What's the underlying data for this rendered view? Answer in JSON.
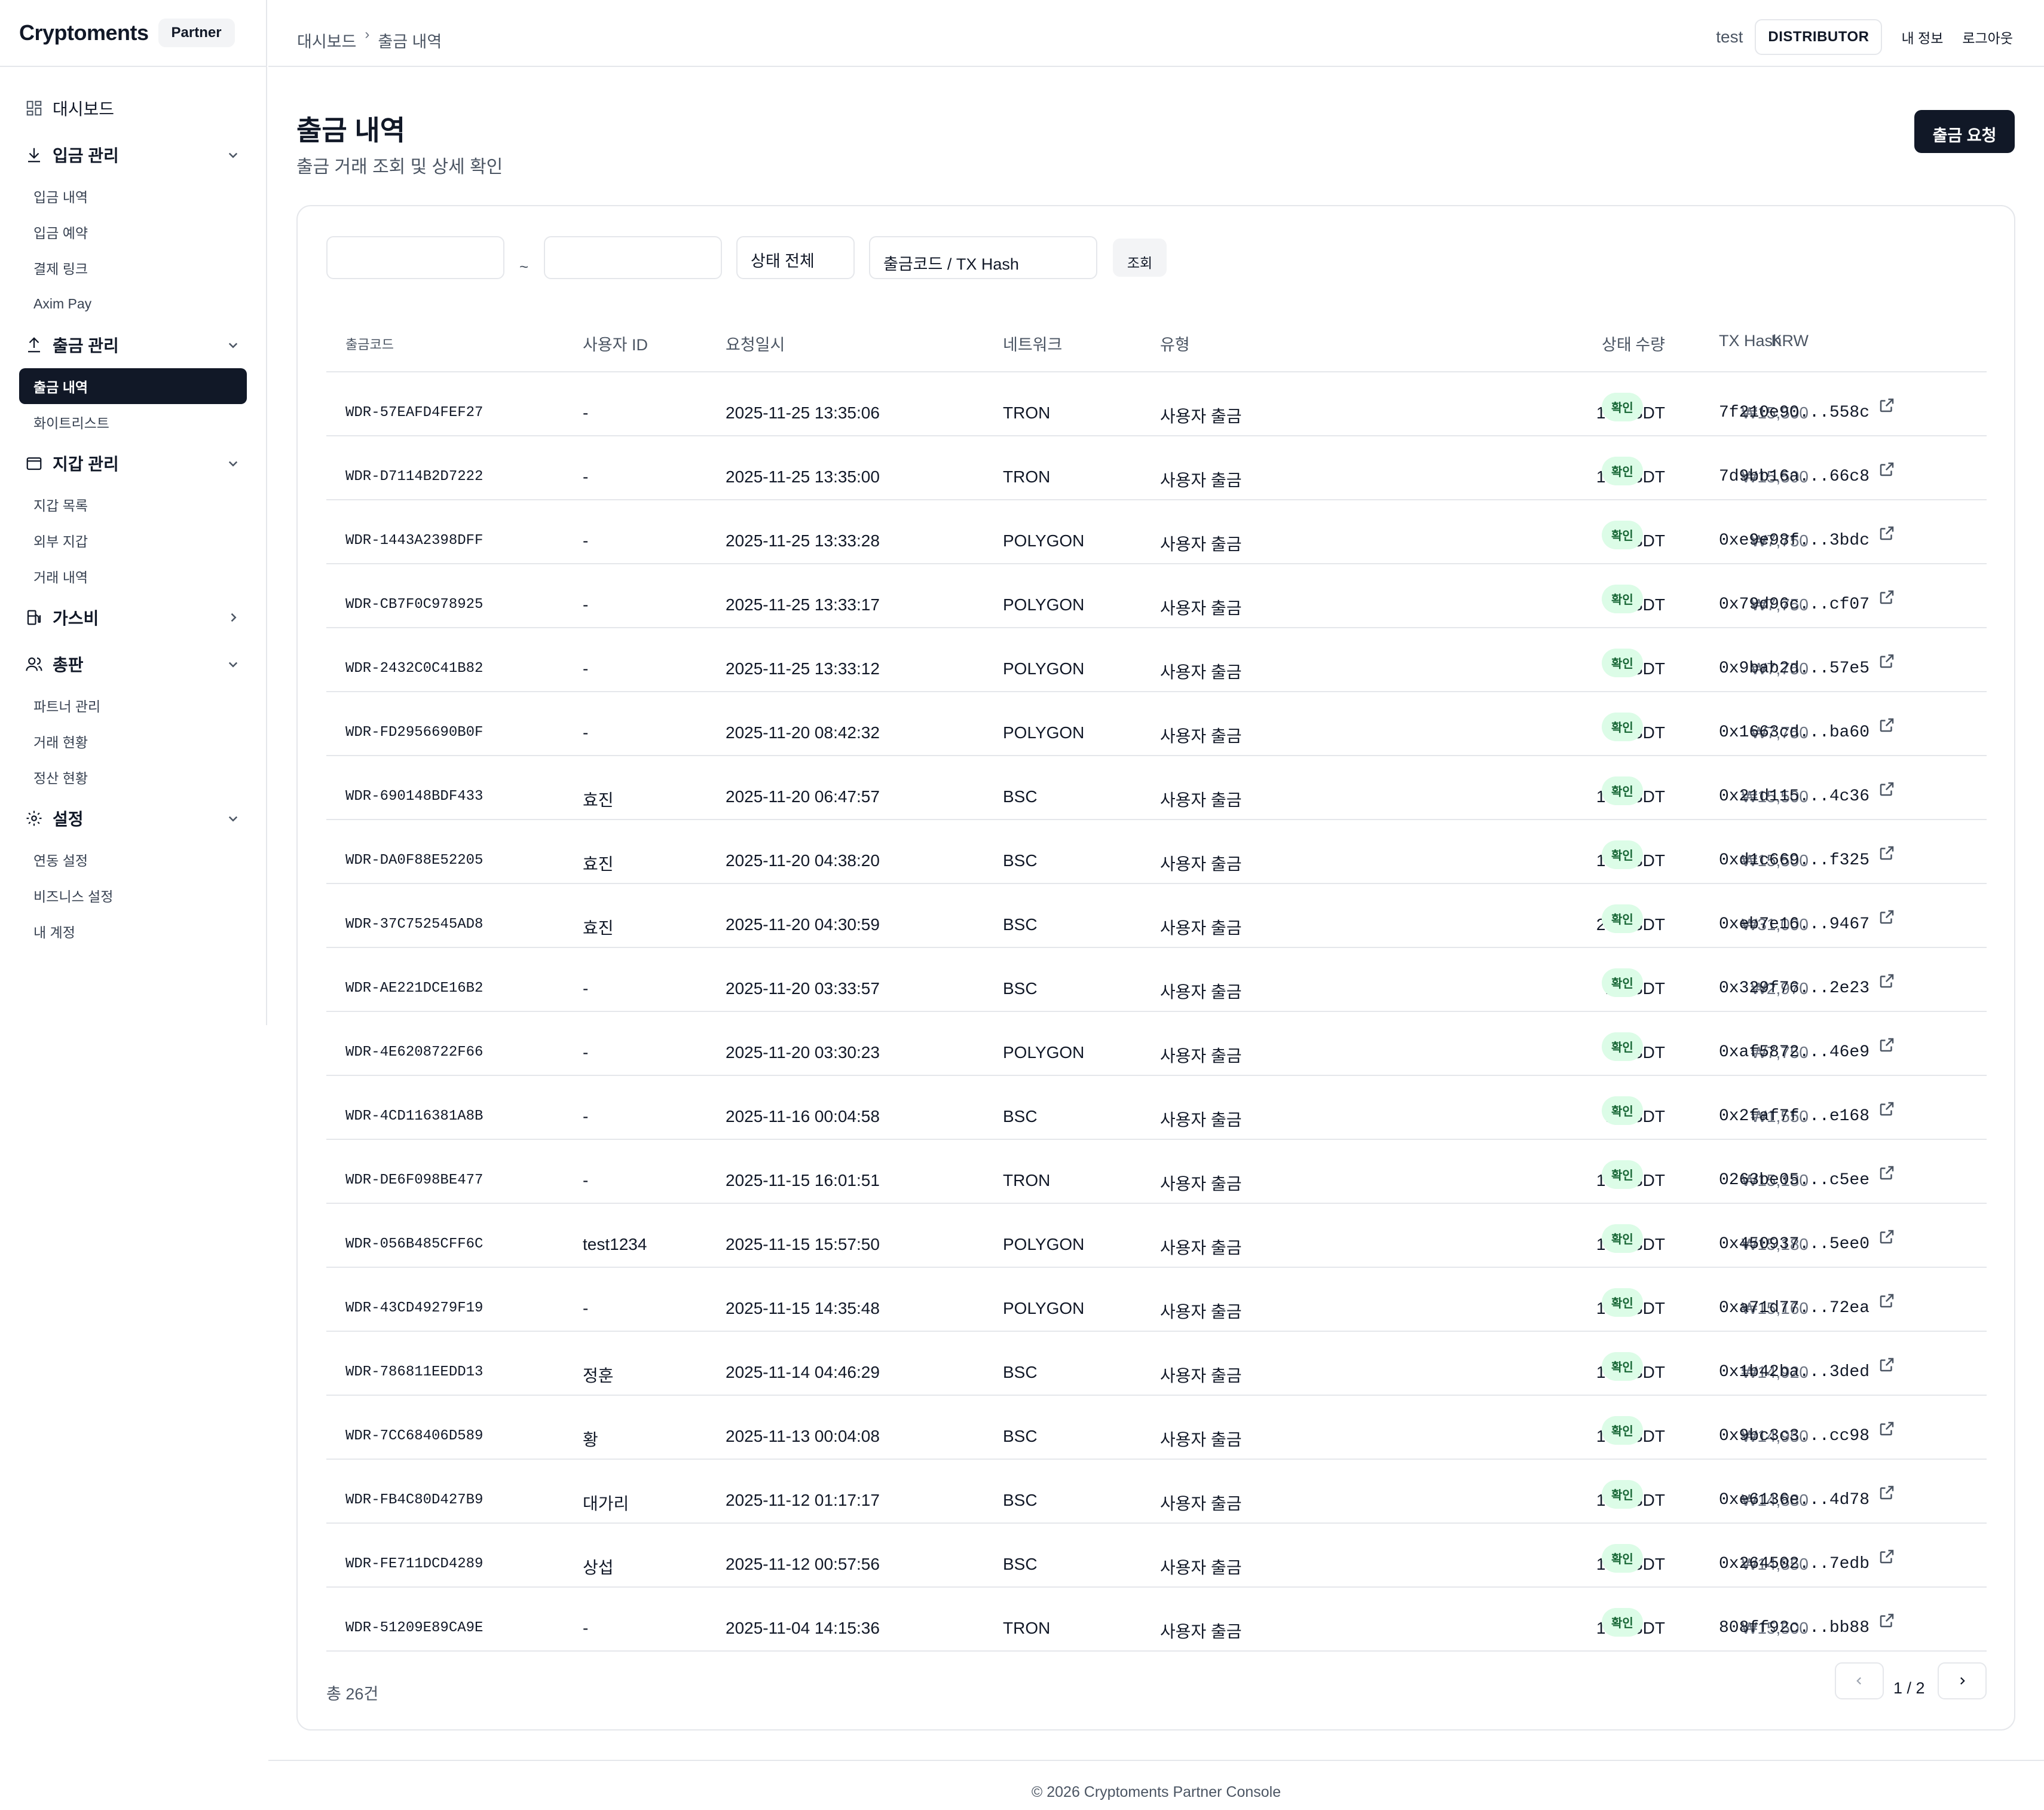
{
  "brand": {
    "name": "Cryptoments",
    "badge": "Partner"
  },
  "sidebar": {
    "dashboard": "대시보드",
    "deposit": {
      "label": "입금 관리",
      "items": [
        "입금 내역",
        "입금 예약",
        "결제 링크",
        "Axim Pay"
      ]
    },
    "withdraw": {
      "label": "출금 관리",
      "items": [
        "출금 내역",
        "화이트리스트"
      ]
    },
    "wallet": {
      "label": "지갑 관리",
      "items": [
        "지갑 목록",
        "외부 지갑",
        "거래 내역"
      ]
    },
    "gas": {
      "label": "가스비"
    },
    "distributor": {
      "label": "총판",
      "items": [
        "파트너 관리",
        "거래 현황",
        "정산 현황"
      ]
    },
    "settings": {
      "label": "설정",
      "items": [
        "연동 설정",
        "비즈니스 설정",
        "내 계정"
      ]
    }
  },
  "header": {
    "breadcrumb": [
      "대시보드",
      "출금 내역"
    ],
    "user": "test",
    "role": "DISTRIBUTOR",
    "my_info": "내 정보",
    "logout": "로그아웃"
  },
  "page": {
    "title": "출금 내역",
    "subtitle": "출금 거래 조회 및 상세 확인",
    "request_button": "출금 요청"
  },
  "filters": {
    "start_date": "",
    "end_date": "",
    "range_sep": "~",
    "status": "상태 전체",
    "search_placeholder": "출금코드 / TX Hash",
    "search_button": "조회"
  },
  "table": {
    "columns": [
      "출금코드",
      "사용자 ID",
      "요청일시",
      "네트워크",
      "유형",
      "수량",
      "KRW",
      "상태",
      "TX Hash"
    ],
    "rows": [
      {
        "code": "WDR-57EAFD4FEF27",
        "user": "-",
        "date": "2025-11-25 13:35:06",
        "network": "TRON",
        "type": "사용자 출금",
        "qty": "10",
        "unit": "USDT",
        "krw": "₩15,500",
        "status": "확인",
        "hash": "7f210e90...558c"
      },
      {
        "code": "WDR-D7114B2D7222",
        "user": "-",
        "date": "2025-11-25 13:35:00",
        "network": "TRON",
        "type": "사용자 출금",
        "qty": "10",
        "unit": "USDT",
        "krw": "₩15,500",
        "status": "확인",
        "hash": "7d9bb16a...66c8"
      },
      {
        "code": "WDR-1443A2398DFF",
        "user": "-",
        "date": "2025-11-25 13:33:28",
        "network": "POLYGON",
        "type": "사용자 출금",
        "qty": "5",
        "unit": "USDT",
        "krw": "₩7,750",
        "status": "확인",
        "hash": "0xe9e98f...3bdc"
      },
      {
        "code": "WDR-CB7F0C978925",
        "user": "-",
        "date": "2025-11-25 13:33:17",
        "network": "POLYGON",
        "type": "사용자 출금",
        "qty": "5",
        "unit": "USDT",
        "krw": "₩7,750",
        "status": "확인",
        "hash": "0x79d96c...cf07"
      },
      {
        "code": "WDR-2432C0C41B82",
        "user": "-",
        "date": "2025-11-25 13:33:12",
        "network": "POLYGON",
        "type": "사용자 출금",
        "qty": "5",
        "unit": "USDT",
        "krw": "₩7,750",
        "status": "확인",
        "hash": "0x9bab2d...57e5"
      },
      {
        "code": "WDR-FD2956690B0F",
        "user": "-",
        "date": "2025-11-20 08:42:32",
        "network": "POLYGON",
        "type": "사용자 출금",
        "qty": "5",
        "unit": "USDT",
        "krw": "₩7,750",
        "status": "확인",
        "hash": "0x1663cd...ba60"
      },
      {
        "code": "WDR-690148BDF433",
        "user": "효진",
        "date": "2025-11-20 06:47:57",
        "network": "BSC",
        "type": "사용자 출금",
        "qty": "10",
        "unit": "USDT",
        "krw": "₩15,500",
        "status": "확인",
        "hash": "0x21d115...4c36"
      },
      {
        "code": "WDR-DA0F88E52205",
        "user": "효진",
        "date": "2025-11-20 04:38:20",
        "network": "BSC",
        "type": "사용자 출금",
        "qty": "10",
        "unit": "USDT",
        "krw": "₩15,500",
        "status": "확인",
        "hash": "0xd1c669...f325"
      },
      {
        "code": "WDR-37C752545AD8",
        "user": "효진",
        "date": "2025-11-20 04:30:59",
        "network": "BSC",
        "type": "사용자 출금",
        "qty": "20",
        "unit": "USDT",
        "krw": "₩31,000",
        "status": "확인",
        "hash": "0xeb7e16...9467"
      },
      {
        "code": "WDR-AE221DCE16B2",
        "user": "-",
        "date": "2025-11-20 03:33:57",
        "network": "BSC",
        "type": "사용자 출금",
        "qty": "2",
        "unit": "USDT",
        "krw": "₩2,970",
        "status": "확인",
        "hash": "0x329f76...2e23"
      },
      {
        "code": "WDR-4E6208722F66",
        "user": "-",
        "date": "2025-11-20 03:30:23",
        "network": "POLYGON",
        "type": "사용자 출금",
        "qty": "5",
        "unit": "USDT",
        "krw": "₩7,750",
        "status": "확인",
        "hash": "0xaf5872...46e9"
      },
      {
        "code": "WDR-4CD116381A8B",
        "user": "-",
        "date": "2025-11-16 00:04:58",
        "network": "BSC",
        "type": "사용자 출금",
        "qty": "1",
        "unit": "USDT",
        "krw": "₩1,550",
        "status": "확인",
        "hash": "0x2faf7f...e168"
      },
      {
        "code": "WDR-DE6F098BE477",
        "user": "-",
        "date": "2025-11-15 16:01:51",
        "network": "TRON",
        "type": "사용자 출금",
        "qty": "10",
        "unit": "USDT",
        "krw": "₩15,180",
        "status": "확인",
        "hash": "0263be05...c5ee"
      },
      {
        "code": "WDR-056B485CFF6C",
        "user": "test1234",
        "date": "2025-11-15 15:57:50",
        "network": "POLYGON",
        "type": "사용자 출금",
        "qty": "10",
        "unit": "USDT",
        "krw": "₩15,180",
        "status": "확인",
        "hash": "0x450937...5ee0"
      },
      {
        "code": "WDR-43CD49279F19",
        "user": "-",
        "date": "2025-11-15 14:35:48",
        "network": "POLYGON",
        "type": "사용자 출금",
        "qty": "10",
        "unit": "USDT",
        "krw": "₩15,160",
        "status": "확인",
        "hash": "0xa71d77...72ea"
      },
      {
        "code": "WDR-786811EEDD13",
        "user": "정훈",
        "date": "2025-11-14 04:46:29",
        "network": "BSC",
        "type": "사용자 출금",
        "qty": "10",
        "unit": "USDT",
        "krw": "₩14,920",
        "status": "확인",
        "hash": "0x1b42ba...3ded"
      },
      {
        "code": "WDR-7CC68406D589",
        "user": "황",
        "date": "2025-11-13 00:04:08",
        "network": "BSC",
        "type": "사용자 출금",
        "qty": "10",
        "unit": "USDT",
        "krw": "₩14,950",
        "status": "확인",
        "hash": "0x9bc3c3...cc98"
      },
      {
        "code": "WDR-FB4C80D427B9",
        "user": "대가리",
        "date": "2025-11-12 01:17:17",
        "network": "BSC",
        "type": "사용자 출금",
        "qty": "10",
        "unit": "USDT",
        "krw": "₩14,880",
        "status": "확인",
        "hash": "0xe6136e...4d78"
      },
      {
        "code": "WDR-FE711DCD4289",
        "user": "상섭",
        "date": "2025-11-12 00:57:56",
        "network": "BSC",
        "type": "사용자 출금",
        "qty": "10",
        "unit": "USDT",
        "krw": "₩14,850",
        "status": "확인",
        "hash": "0x264502...7edb"
      },
      {
        "code": "WDR-51209E89CA9E",
        "user": "-",
        "date": "2025-11-04 14:15:36",
        "network": "TRON",
        "type": "사용자 출금",
        "qty": "10",
        "unit": "USDT",
        "krw": "₩15,500",
        "status": "확인",
        "hash": "808ff92c...bb88"
      }
    ]
  },
  "pagination": {
    "total": "총 26건",
    "page": "1 / 2"
  },
  "footer": "© 2026 Cryptoments Partner Console",
  "colors": {
    "primary": "#111827",
    "badge_bg": "#dcfce7",
    "badge_text": "#166534",
    "border": "#e5e7eb"
  }
}
